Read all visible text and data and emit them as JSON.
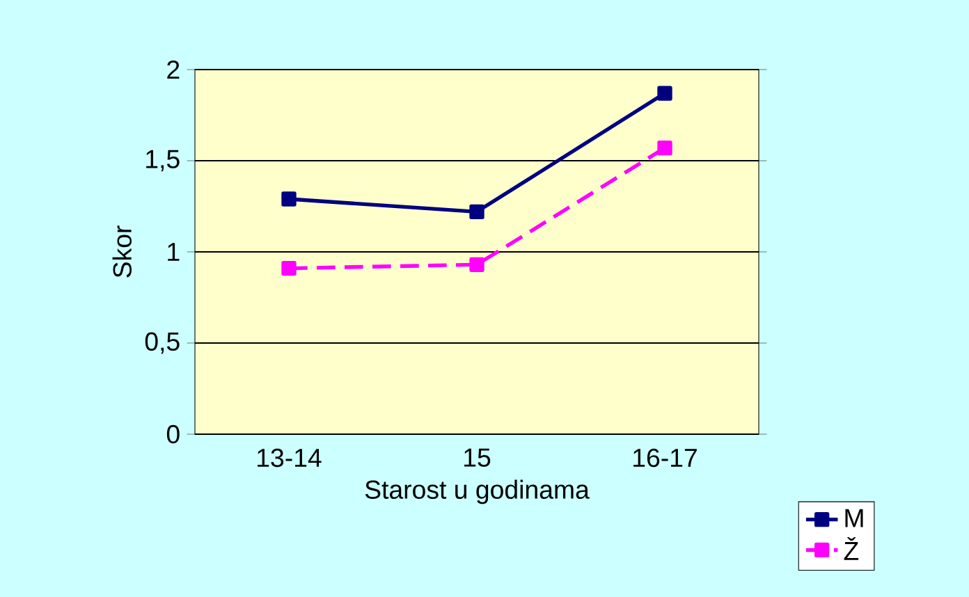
{
  "chart_data": {
    "type": "line",
    "xlabel": "Starost u godinama",
    "ylabel": "Skor",
    "categories": [
      "13-14",
      "15",
      "16-17"
    ],
    "series": [
      {
        "name": "M",
        "color": "#000080",
        "values": [
          1.29,
          1.22,
          1.87
        ],
        "line_style": "solid"
      },
      {
        "name": "Ž",
        "color": "#ff00ff",
        "values": [
          0.91,
          0.93,
          1.57
        ],
        "line_style": "dashed"
      }
    ],
    "ylim": [
      0,
      2
    ],
    "yticks": [
      {
        "value": 0,
        "label": "0"
      },
      {
        "value": 0.5,
        "label": "0,5"
      },
      {
        "value": 1,
        "label": "1"
      },
      {
        "value": 1.5,
        "label": "1,5"
      },
      {
        "value": 2,
        "label": "2"
      }
    ],
    "grid": "y",
    "legend": "bottom right",
    "marker": "square"
  }
}
